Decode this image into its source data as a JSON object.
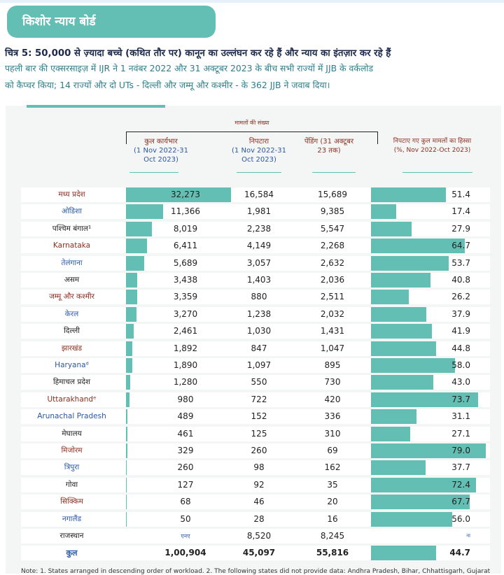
{
  "header": {
    "title": "किशोर न्याय बोर्ड"
  },
  "figure": {
    "title": "चित्र 5: 50,000 से ज़्यादा बच्चे (कथित तौर पर) कानून का उल्लंघन कर रहे हैं और न्याय का इंतज़ार कर रहे हैं",
    "description": [
      "पहली बार की एक्सरसाइज़ में IJR ने 1 नवंबर 2022 और 31 अक्टूबर 2023 के बीच सभी राज्यों में JJB के वर्कलोड",
      "को कैप्चर किया; 14 राज्यों और दो UTs - दिल्ली और जम्मू और कश्मीर - के 362 JJB ने जवाब दिया।"
    ]
  },
  "table": {
    "group_header": "मामलों की संख्या",
    "columns": [
      {
        "title": "कुल कार्यभार",
        "subtitle": "(1 Nov 2022-31 Oct 2023)"
      },
      {
        "title": "निपटारा",
        "subtitle": "(1 Nov 2022-31 Oct 2023)"
      },
      {
        "title": "पेंडिंग (31 अक्टूबर 23 तक)"
      },
      {
        "title": "निपटाए गए कुल मामलों का हिस्सा (%, Nov 2022-Oct 2023)"
      }
    ],
    "rows": [
      [
        "मध्य प्रदेश",
        {
          "value": 32273,
          "label": "32,273"
        },
        "16,584",
        "15,689",
        51.4
      ],
      [
        "ओडिशा",
        {
          "value": 11366,
          "label": "11,366"
        },
        "1,981",
        "9,385",
        17.4
      ],
      [
        "पश्चिम बंगाल¹",
        {
          "value": 8019,
          "label": "8,019"
        },
        "2,238",
        "5,547",
        27.9
      ],
      [
        "Karnataka",
        {
          "value": 6411,
          "label": "6,411"
        },
        "4,149",
        "2,268",
        64.7
      ],
      [
        "तेलंगाना",
        {
          "value": 5689,
          "label": "5,689"
        },
        "3,057",
        "2,632",
        53.7
      ],
      [
        "असम",
        {
          "value": 3438,
          "label": "3,438"
        },
        "1,403",
        "2,036",
        40.8
      ],
      [
        "जम्मू और कश्मीर",
        {
          "value": 3359,
          "label": "3,359"
        },
        "880",
        "2,511",
        26.2
      ],
      [
        "केरल",
        {
          "value": 3270,
          "label": "3,270"
        },
        "1,238",
        "2,032",
        37.9
      ],
      [
        "दिल्ली",
        {
          "value": 2461,
          "label": "2,461"
        },
        "1,030",
        "1,431",
        41.9
      ],
      [
        "झारखंड",
        {
          "value": 1892,
          "label": "1,892"
        },
        "847",
        "1,047",
        44.8
      ],
      [
        "Haryanaᵈ",
        {
          "value": 1890,
          "label": "1,890"
        },
        "1,097",
        "895",
        {
          "value": 58,
          "label": "58.0"
        }
      ],
      [
        "हिमाचल प्रदेश",
        {
          "value": 1280,
          "label": "1,280"
        },
        "550",
        "730",
        {
          "value": 43,
          "label": "43.0"
        }
      ],
      [
        "Uttarakhandᵉ",
        980,
        "722",
        "420",
        73.7
      ],
      [
        "Arunachal Pradesh",
        489,
        "152",
        "336",
        31.1
      ],
      [
        "मेघालय",
        461,
        "125",
        "310",
        27.1
      ],
      [
        "मिजोरम",
        329,
        "260",
        "69",
        {
          "value": 79,
          "label": "79.0"
        }
      ],
      [
        "त्रिपुरा",
        260,
        "98",
        "162",
        37.7
      ],
      [
        "गोवा",
        127,
        "92",
        "35",
        72.4
      ],
      [
        "सिक्किम",
        68,
        "46",
        "20",
        67.7
      ],
      [
        "नगालैंड",
        50,
        "28",
        "16",
        {
          "value": 56,
          "label": "56.0"
        }
      ],
      [
        "राजस्थान",
        "एनए",
        "8,520",
        "8,245",
        "ना"
      ]
    ],
    "total": [
      "कुल",
      "1,00,904",
      "45,097",
      "55,816",
      44.7
    ]
  },
  "note": "Note: 1. States arranged in descending order of workload. 2. The following states did not provide data: Andhra Pradesh, Bihar, Chhattisgarh, Gujarat"
}
